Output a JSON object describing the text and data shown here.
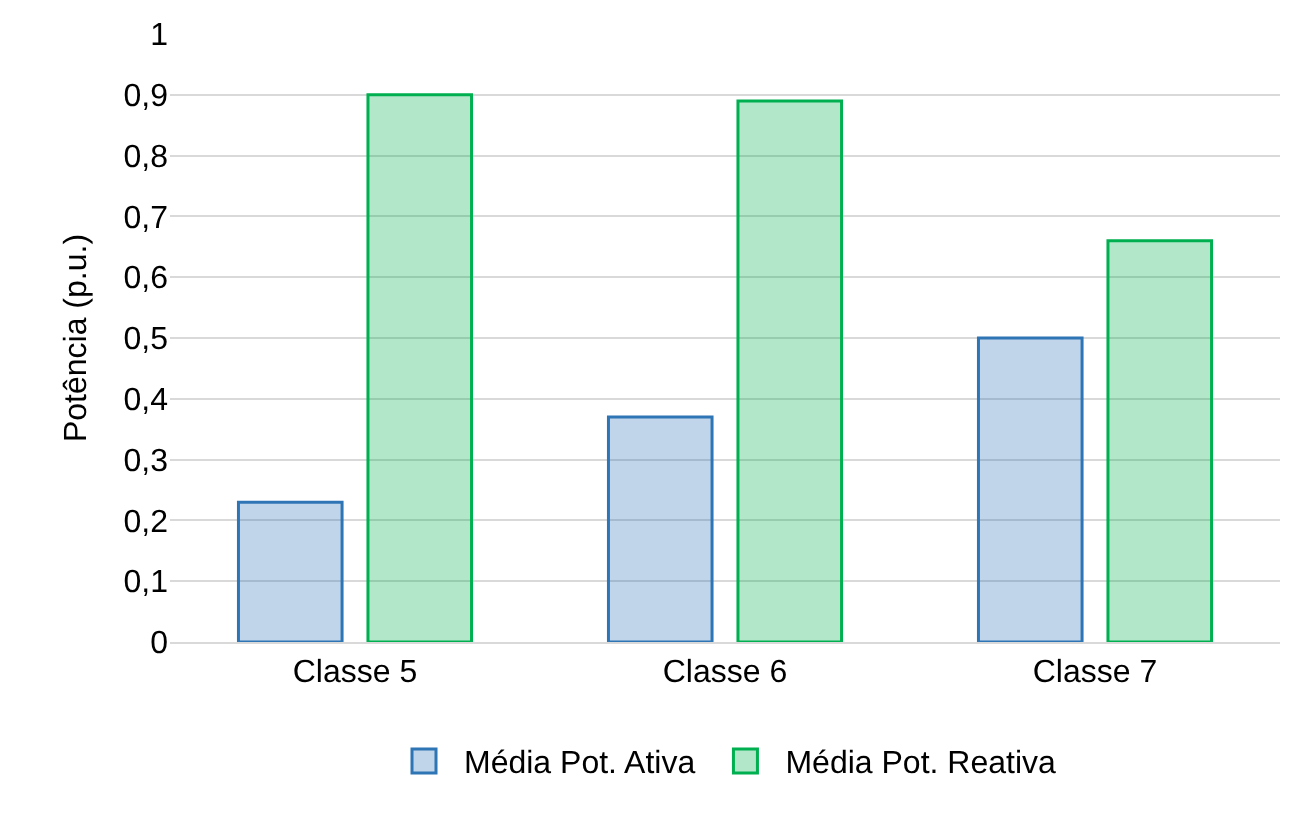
{
  "chart_data": {
    "type": "bar",
    "ylabel": "Potência (p.u.)",
    "categories": [
      "Classe 5",
      "Classe 6",
      "Classe 7"
    ],
    "series": [
      {
        "name": "Média Pot. Ativa",
        "color": "#2e75b6",
        "values": [
          0.23,
          0.37,
          0.5
        ]
      },
      {
        "name": "Média Pot. Reativa",
        "color": "#00b050",
        "values": [
          0.9,
          0.89,
          0.66
        ]
      }
    ],
    "ylim": [
      0,
      1
    ],
    "yticks": [
      0,
      {
        "value": 0.1,
        "label": "0,1"
      },
      {
        "value": 0.2,
        "label": "0,2"
      },
      {
        "value": 0.3,
        "label": "0,3"
      },
      {
        "value": 0.4,
        "label": "0,4"
      },
      {
        "value": 0.5,
        "label": "0,5"
      },
      {
        "value": 0.6,
        "label": "0,6"
      },
      {
        "value": 0.7,
        "label": "0,7"
      },
      {
        "value": 0.8,
        "label": "0,8"
      },
      {
        "value": 0.9,
        "label": "0,9"
      },
      1
    ],
    "grid": "y",
    "legend": "bottom"
  }
}
